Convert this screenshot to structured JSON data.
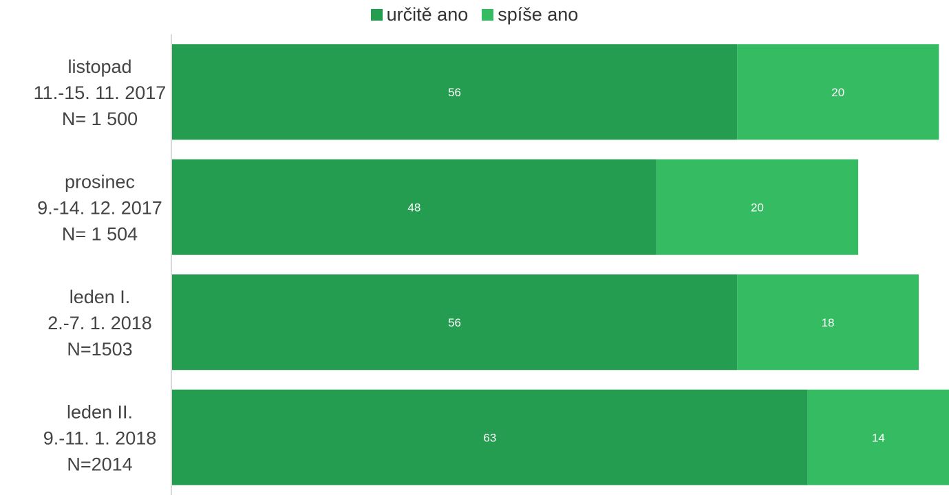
{
  "chart_data": {
    "type": "bar",
    "orientation": "horizontal",
    "stacked": true,
    "categories": [
      [
        "listopad",
        "11.-15. 11. 2017",
        "N= 1 500"
      ],
      [
        "prosinec",
        "9.-14. 12. 2017",
        "N= 1 504"
      ],
      [
        "leden I.",
        "2.-7. 1. 2018",
        "N=1503"
      ],
      [
        "leden II.",
        "9.-11. 1. 2018",
        "N=2014"
      ]
    ],
    "series": [
      {
        "name": "určitě ano",
        "values": [
          56,
          48,
          56,
          63
        ],
        "color": "#259D51"
      },
      {
        "name": "spíše ano",
        "values": [
          20,
          20,
          18,
          14
        ],
        "color": "#35BC63"
      }
    ],
    "xlim": [
      0,
      77
    ],
    "grid": false,
    "legend": "top-center",
    "data_labels": true
  }
}
